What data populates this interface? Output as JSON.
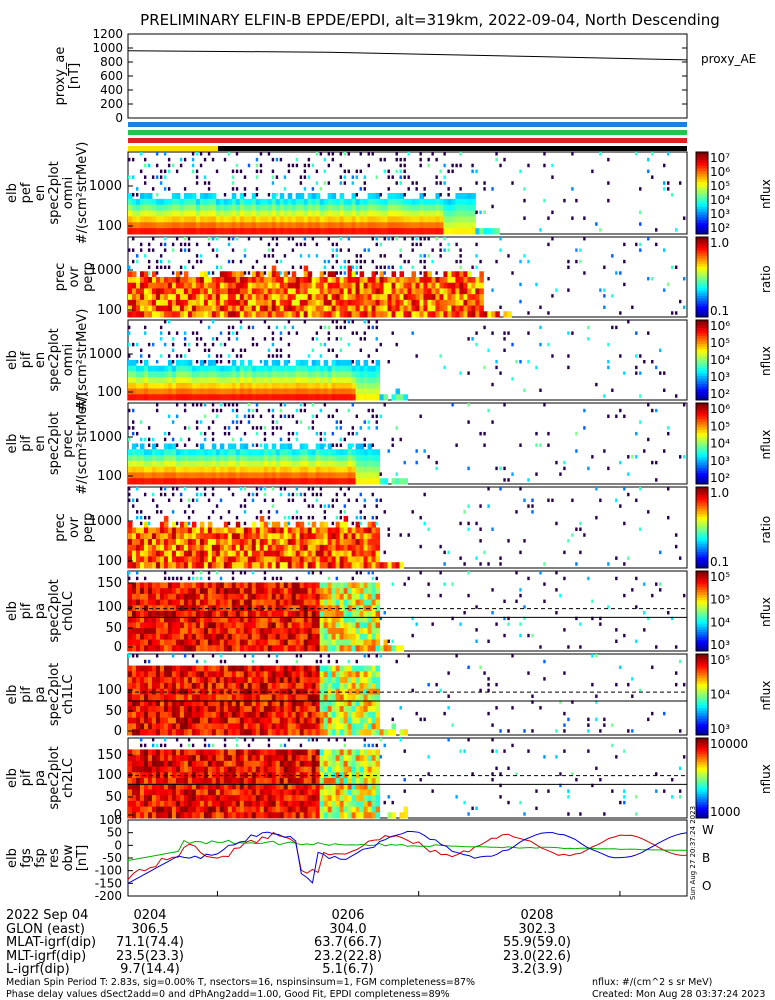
{
  "title": "PRELIMINARY ELFIN-B EPDE/EPDI, alt=319km, 2022-09-04, North Descending",
  "chart_data": [
    {
      "type": "line",
      "panel": "proxy_ae",
      "ylabel": [
        "proxy_ae",
        "[nT]"
      ],
      "ylim": [
        0,
        1200
      ],
      "yticks": [
        "0",
        "200",
        "400",
        "600",
        "800",
        "1000",
        "1200"
      ],
      "legend": "proxy_AE",
      "series": [
        {
          "name": "proxy_AE",
          "x": [
            "02:03:05",
            "02:05:00",
            "02:07:00",
            "02:09:40"
          ],
          "values": [
            960,
            940,
            880,
            830
          ]
        }
      ]
    },
    {
      "type": "heatmap",
      "panel": "elb_pef_en_spec2plot_omni",
      "ylabel": [
        "elb",
        "pef",
        "en",
        "spec2plot",
        "omni",
        "#/(scm²strMeV)"
      ],
      "yticks": [
        "100",
        "1000"
      ],
      "colorbar": {
        "label": "nflux",
        "ticks": [
          "10²",
          "10³",
          "10⁴",
          "10⁵",
          "10⁶",
          "10⁷"
        ]
      }
    },
    {
      "type": "heatmap",
      "panel": "elb_pef_en_spec2plot_prec_ovr_perp",
      "ylabel": [
        "prec",
        "ovr",
        "perp"
      ],
      "yticks": [
        "100",
        "1000"
      ],
      "colorbar": {
        "label": "ratio",
        "ticks": [
          "0.1",
          "1.0"
        ]
      }
    },
    {
      "type": "heatmap",
      "panel": "elb_pif_en_spec2plot_omni",
      "ylabel": [
        "elb",
        "pif",
        "en",
        "spec2plot",
        "omni",
        "#/(scm²strMeV)"
      ],
      "yticks": [
        "100",
        "1000"
      ],
      "colorbar": {
        "label": "nflux",
        "ticks": [
          "10²",
          "10³",
          "10⁴",
          "10⁵",
          "10⁶"
        ]
      }
    },
    {
      "type": "heatmap",
      "panel": "elb_pif_en_spec2plot_prec",
      "ylabel": [
        "elb",
        "pif",
        "en",
        "spec2plot",
        "prec",
        "#/(scm²strMeV)"
      ],
      "yticks": [
        "100",
        "1000"
      ],
      "colorbar": {
        "label": "nflux",
        "ticks": [
          "10²",
          "10³",
          "10⁴",
          "10⁵",
          "10⁶"
        ]
      }
    },
    {
      "type": "heatmap",
      "panel": "elb_pif_prec_ovr_perp",
      "ylabel": [
        "prec",
        "ovr",
        "perp"
      ],
      "yticks": [
        "100",
        "1000"
      ],
      "colorbar": {
        "label": "ratio",
        "ticks": [
          "0.1",
          "1.0"
        ]
      }
    },
    {
      "type": "heatmap",
      "panel": "elb_pif_pa_spec2plot_ch0LC",
      "ylabel": [
        "elb",
        "pif",
        "pa",
        "spec2plot",
        "ch0LC"
      ],
      "yticks": [
        "0",
        "50",
        "100",
        "150"
      ],
      "colorbar": {
        "label": "nflux",
        "ticks": [
          "10³",
          "10⁴",
          "10⁵",
          "10⁵"
        ]
      }
    },
    {
      "type": "heatmap",
      "panel": "elb_pif_pa_spec2plot_ch1LC",
      "ylabel": [
        "elb",
        "pif",
        "pa",
        "spec2plot",
        "ch1LC"
      ],
      "yticks": [
        "0",
        "50",
        "100"
      ],
      "colorbar": {
        "label": "nflux",
        "ticks": [
          "10³",
          "10⁴",
          "10⁵"
        ]
      }
    },
    {
      "type": "heatmap",
      "panel": "elb_pif_pa_spec2plot_ch2LC",
      "ylabel": [
        "elb",
        "pif",
        "pa",
        "spec2plot",
        "ch2LC"
      ],
      "yticks": [
        "0",
        "50",
        "100",
        "150"
      ],
      "colorbar": {
        "label": "nflux",
        "ticks": [
          "1000",
          "10000"
        ]
      }
    },
    {
      "type": "line",
      "panel": "elb_fgs_fsp_res_obw",
      "ylabel": [
        "elb",
        "fgs",
        "fsp",
        "res",
        "obw",
        "[nT]"
      ],
      "ylim": [
        -200,
        100
      ],
      "yticks": [
        "-200",
        "-150",
        "-100",
        "-50",
        "0",
        "50",
        "100"
      ],
      "series": [
        {
          "name": "W",
          "color": "#d00000"
        },
        {
          "name": "B",
          "color": "#00b000"
        },
        {
          "name": "O",
          "color": "#0000d0"
        }
      ]
    }
  ],
  "xticks": [
    "0204",
    "0206",
    "0208"
  ],
  "rows": [
    {
      "label": "2022 Sep 04",
      "values": [
        "0204",
        "0206",
        "0208"
      ]
    },
    {
      "label": "GLON (east)",
      "values": [
        "306.5",
        "304.0",
        "302.3"
      ]
    },
    {
      "label": "MLAT-igrf(dip)",
      "values": [
        "71.1(74.4)",
        "63.7(66.7)",
        "55.9(59.0)"
      ]
    },
    {
      "label": "MLT-igrf(dip)",
      "values": [
        "23.5(23.3)",
        "23.2(22.8)",
        "23.0(22.6)"
      ]
    },
    {
      "label": "L-igrf(dip)",
      "values": [
        "9.7(14.4)",
        "5.1(6.7)",
        "3.2(3.9)"
      ]
    }
  ],
  "notes": {
    "line1": "Median Spin Period T: 2.83s, sig=0.00% T, nsectors=16, nspinsinsum=1, FGM completeness=87%",
    "line2": "Phase delay values dSect2add=0 and dPhAng2add=1.00, Good Fit, EPDI completeness=89%",
    "units": "nflux: #/(cm^2 s sr MeV)",
    "created": "Created: Mon Aug 28 03:37:24 2023",
    "side_stamp": "Sun Aug 27 20:37:24 2023"
  },
  "colors": {
    "blue": "#1e7fe0",
    "green": "#22c44a",
    "red": "#e0201c"
  }
}
